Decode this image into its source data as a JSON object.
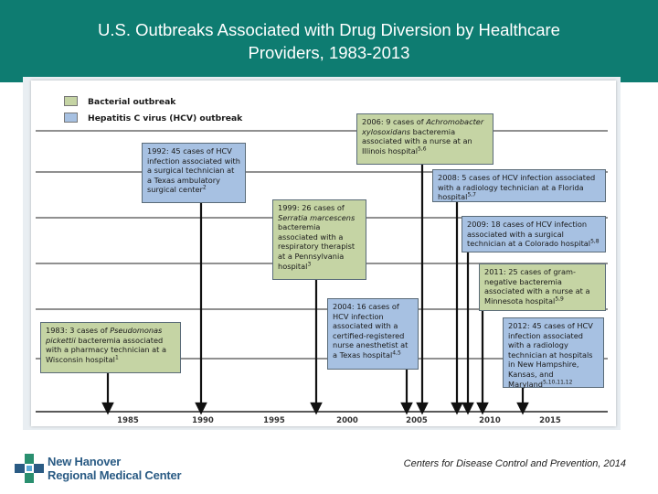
{
  "header": {
    "title_line1": "U.S. Outbreaks Associated with Drug Diversion by Healthcare",
    "title_line2": "Providers, 1983-2013",
    "color": "#0e7c71"
  },
  "legend": {
    "bacterial_label": "Bacterial outbreak",
    "hcv_label": "Hepatitis C virus (HCV) outbreak",
    "bacterial_color": "#c5d4a4",
    "hcv_color": "#a7c1e2"
  },
  "axis": {
    "years": [
      "1985",
      "1990",
      "1995",
      "2000",
      "2005",
      "2010",
      "2015"
    ]
  },
  "events": [
    {
      "type": "bacterial",
      "year": 1983,
      "text_html": "1983: 3 cases of <i>Pseudomonas pickettii</i> bacteremia associated with a pharmacy technician at a Wisconsin hospital<span class=\"sup\">1</span>"
    },
    {
      "type": "hcv",
      "year": 1992,
      "text_html": "1992: 45 cases of HCV infection associated with a surgical technician at a Texas ambulatory surgical center<span class=\"sup\">2</span>"
    },
    {
      "type": "bacterial",
      "year": 1999,
      "text_html": "1999: 26 cases of <i>Serratia marcescens</i> bacteremia associated with a respiratory therapist at a Pennsylvania hospital<span class=\"sup\">3</span>"
    },
    {
      "type": "hcv",
      "year": 2004,
      "text_html": "2004: 16 cases of HCV infection associated with a certified-registered nurse anesthetist at a Texas hospital<span class=\"sup\">4,5</span>"
    },
    {
      "type": "bacterial",
      "year": 2006,
      "text_html": "2006: 9 cases of <i>Achromobacter xylosoxidans</i> bacteremia associated with a nurse at an Illinois hospital<span class=\"sup\">5,6</span>"
    },
    {
      "type": "hcv",
      "year": 2008,
      "text_html": "2008: 5 cases of HCV infection associated with a radiology technician at a Florida hospital<span class=\"sup\">5,7</span>"
    },
    {
      "type": "hcv",
      "year": 2009,
      "text_html": "2009: 18 cases of HCV infection associated with a surgical technician at a Colorado hospital<span class=\"sup\">5,8</span>"
    },
    {
      "type": "bacterial",
      "year": 2011,
      "text_html": "2011: 25 cases of gram-negative bacteremia associated with a nurse at a Minnesota hospital<span class=\"sup\">5,9</span>"
    },
    {
      "type": "hcv",
      "year": 2012,
      "text_html": "2012: 45 cases of HCV infection associated with a radiology technician at hospitals in New Hampshire, Kansas, and Maryland<span class=\"sup\">5,10,11,12</span>"
    }
  ],
  "footer": {
    "logo_line1": "New Hanover",
    "logo_line2": "Regional Medical Center",
    "credit": "Centers for Disease Control and Prevention, 2014"
  }
}
